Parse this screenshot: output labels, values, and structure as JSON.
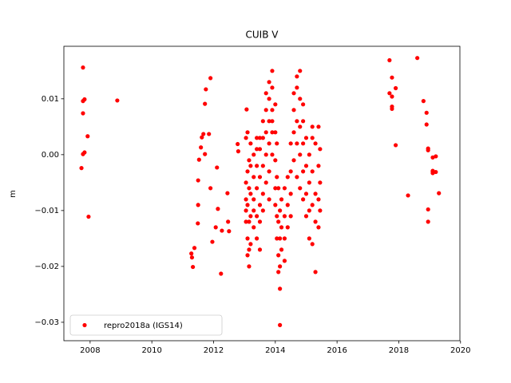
{
  "chart_data": {
    "type": "scatter",
    "title": "CUIB V",
    "y_label": "m",
    "xlim": [
      2007.15,
      2019.98
    ],
    "ylim": [
      -0.0333,
      0.0194
    ],
    "xticks": [
      2008,
      2010,
      2012,
      2014,
      2016,
      2018,
      2020
    ],
    "yticks": [
      {
        "value": -0.03,
        "label": "−0.03"
      },
      {
        "value": -0.02,
        "label": "−0.02"
      },
      {
        "value": -0.01,
        "label": "−0.01"
      },
      {
        "value": 0,
        "label": "0.00"
      },
      0.01
    ],
    "legend": "lower left",
    "x": [
      2007.77,
      2007.82,
      2007.77,
      2007.77,
      2007.77,
      2007.72,
      2007.82,
      2007.92,
      2007.95,
      2008.88,
      2011.28,
      2011.3,
      2011.33,
      2011.38,
      2011.49,
      2011.5,
      2011.5,
      2011.53,
      2011.59,
      2011.62,
      2011.67,
      2011.72,
      2011.72,
      2011.75,
      2011.9,
      2011.85,
      2011.9,
      2011.96,
      2012.07,
      2012.11,
      2012.14,
      2012.24,
      2012.27,
      2012.45,
      2012.47,
      2012.5,
      2012.78,
      2012.8,
      2013.07,
      2013.05,
      2013.05,
      2013.05,
      2013.05,
      2013.05,
      2013.1,
      2013.1,
      2013.1,
      2013.1,
      2013.1,
      2013.15,
      2013.15,
      2013.15,
      2013.15,
      2013.15,
      2013.2,
      2013.2,
      2013.2,
      2013.2,
      2013.2,
      2013.3,
      2013.3,
      2013.3,
      2013.3,
      2013.3,
      2013.4,
      2013.4,
      2013.4,
      2013.4,
      2013.4,
      2013.4,
      2013.5,
      2013.5,
      2013.5,
      2013.5,
      2013.5,
      2013.5,
      2013.6,
      2013.6,
      2013.6,
      2013.6,
      2013.6,
      2013.7,
      2013.7,
      2013.7,
      2013.7,
      2013.7,
      2013.8,
      2013.8,
      2013.8,
      2013.8,
      2013.8,
      2013.8,
      2013.9,
      2013.9,
      2013.9,
      2013.9,
      2013.9,
      2013.9,
      2014.0,
      2014.0,
      2014.0,
      2014.0,
      2014.0,
      2014.05,
      2014.05,
      2014.05,
      2014.05,
      2014.1,
      2014.1,
      2014.1,
      2014.1,
      2014.15,
      2014.15,
      2014.15,
      2014.15,
      2014.15,
      2014.2,
      2014.2,
      2014.2,
      2014.3,
      2014.3,
      2014.3,
      2014.3,
      2014.4,
      2014.4,
      2014.4,
      2014.5,
      2014.5,
      2014.5,
      2014.5,
      2014.6,
      2014.6,
      2014.6,
      2014.6,
      2014.7,
      2014.7,
      2014.7,
      2014.7,
      2014.7,
      2014.8,
      2014.8,
      2014.8,
      2014.8,
      2014.8,
      2014.9,
      2014.9,
      2014.9,
      2014.9,
      2014.9,
      2015.0,
      2015.0,
      2015.0,
      2015.0,
      2015.1,
      2015.1,
      2015.1,
      2015.1,
      2015.2,
      2015.2,
      2015.2,
      2015.2,
      2015.2,
      2015.3,
      2015.3,
      2015.3,
      2015.3,
      2015.4,
      2015.4,
      2015.4,
      2015.4,
      2015.45,
      2015.45,
      2015.45,
      2017.7,
      2017.7,
      2017.78,
      2017.78,
      2017.78,
      2017.78,
      2017.9,
      2017.9,
      2018.3,
      2018.6,
      2018.8,
      2018.9,
      2018.9,
      2018.95,
      2018.95,
      2018.95,
      2018.95,
      2019.1,
      2019.1,
      2019.1,
      2019.1,
      2019.2,
      2019.2,
      2019.3
    ],
    "series": [
      {
        "name": "repro2018a (IGS14)",
        "color": "#ff0000",
        "values": [
          0.0156,
          0.0099,
          0.0096,
          0.0074,
          0.0001,
          -0.0024,
          0.0004,
          0.0033,
          -0.0111,
          0.0097,
          -0.0177,
          -0.0184,
          -0.0201,
          -0.0167,
          -0.0123,
          -0.009,
          -0.0046,
          -0.0009,
          0.0013,
          0.0031,
          0.0037,
          0.0091,
          0.0001,
          0.0117,
          0.0137,
          0.0037,
          -0.006,
          -0.0156,
          -0.013,
          -0.0023,
          -0.0097,
          -0.0213,
          -0.0136,
          -0.0069,
          -0.012,
          -0.0137,
          0.0019,
          0.0006,
          0.0081,
          -0.005,
          -0.01,
          -0.012,
          0.003,
          -0.008,
          -0.015,
          -0.018,
          -0.009,
          -0.003,
          0.004,
          -0.02,
          -0.017,
          -0.012,
          -0.006,
          -0.001,
          -0.016,
          -0.011,
          -0.007,
          -0.002,
          0.002,
          -0.013,
          -0.008,
          -0.004,
          0.0,
          -0.01,
          -0.011,
          -0.006,
          -0.002,
          0.001,
          0.003,
          -0.015,
          -0.009,
          -0.004,
          0.001,
          0.003,
          -0.012,
          -0.017,
          -0.007,
          -0.002,
          0.003,
          0.006,
          -0.01,
          -0.005,
          0.0,
          0.004,
          0.008,
          0.011,
          -0.003,
          0.002,
          0.006,
          0.01,
          0.013,
          -0.008,
          0.0,
          0.004,
          0.008,
          0.012,
          0.015,
          0.006,
          0.009,
          0.004,
          -0.001,
          -0.006,
          -0.009,
          0.002,
          -0.004,
          -0.011,
          -0.015,
          -0.006,
          -0.012,
          -0.018,
          -0.021,
          -0.01,
          -0.015,
          -0.02,
          -0.024,
          -0.0305,
          -0.008,
          -0.013,
          -0.017,
          -0.006,
          -0.011,
          -0.015,
          -0.019,
          -0.004,
          -0.009,
          -0.013,
          -0.003,
          -0.007,
          0.002,
          -0.011,
          0.004,
          0.008,
          -0.001,
          0.011,
          0.006,
          0.012,
          0.002,
          0.014,
          -0.004,
          0.01,
          0.015,
          0.005,
          0.0,
          -0.006,
          0.006,
          0.009,
          0.002,
          -0.003,
          -0.008,
          0.003,
          -0.002,
          -0.007,
          -0.011,
          0.0,
          -0.005,
          -0.01,
          -0.015,
          0.005,
          -0.003,
          -0.009,
          -0.016,
          0.003,
          -0.007,
          -0.012,
          -0.021,
          0.002,
          -0.002,
          -0.008,
          -0.013,
          0.005,
          -0.005,
          -0.01,
          0.001,
          0.0169,
          0.011,
          0.0138,
          0.0104,
          0.0082,
          0.0086,
          0.0119,
          0.0017,
          -0.0073,
          0.0173,
          0.0096,
          0.0075,
          0.0054,
          0.0008,
          0.0011,
          -0.0098,
          -0.012,
          -0.0005,
          -0.0029,
          -0.003,
          -0.0033,
          -0.0003,
          -0.0031,
          -0.0069
        ]
      }
    ]
  }
}
